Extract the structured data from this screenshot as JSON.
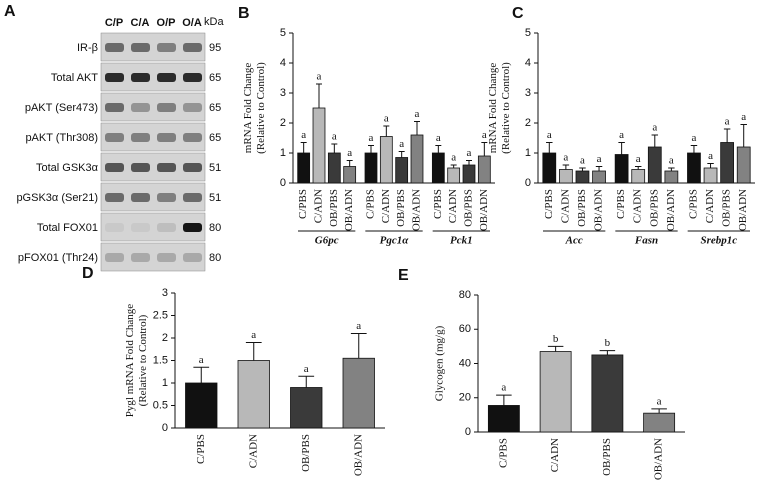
{
  "blot": {
    "panel": "A",
    "lanes": [
      "C/P",
      "C/A",
      "O/P",
      "O/A"
    ],
    "unit": "kDa",
    "rows": [
      {
        "label": "IR-β",
        "kda": 95
      },
      {
        "label": "Total AKT",
        "kda": 65
      },
      {
        "label": "pAKT (Ser473)",
        "kda": 65
      },
      {
        "label": "pAKT (Thr308)",
        "kda": 65
      },
      {
        "label": "Total GSK3α",
        "kda": 51
      },
      {
        "label": "pGSK3α (Ser21)",
        "kda": 51
      },
      {
        "label": "Total FOX01",
        "kda": 80
      },
      {
        "label": "pFOX01 (Thr24)",
        "kda": 80
      }
    ]
  },
  "chart_data": [
    {
      "type": "bar",
      "panel": "B",
      "y_label": [
        "mRNA Fold Change",
        "(Relative to Control)"
      ],
      "categories": [
        "G6pc",
        "Pgc1α",
        "Pck1"
      ],
      "series": [
        {
          "name": "C/PBS",
          "color": "#111111",
          "values": [
            1.0,
            1.0,
            1.0
          ],
          "errors": [
            0.35,
            0.25,
            0.25
          ],
          "letters": [
            "a",
            "a",
            "a"
          ]
        },
        {
          "name": "C/ADN",
          "color": "#b8b8b8",
          "values": [
            2.5,
            1.55,
            0.5
          ],
          "errors": [
            0.8,
            0.35,
            0.1
          ],
          "letters": [
            "a",
            "a",
            "a"
          ]
        },
        {
          "name": "OB/PBS",
          "color": "#3a3a3a",
          "values": [
            1.0,
            0.85,
            0.6
          ],
          "errors": [
            0.3,
            0.2,
            0.15
          ],
          "letters": [
            "a",
            "a",
            "a"
          ]
        },
        {
          "name": "OB/ADN",
          "color": "#828282",
          "values": [
            0.55,
            1.6,
            0.9
          ],
          "errors": [
            0.2,
            0.45,
            0.45
          ],
          "letters": [
            "a",
            "a",
            "a"
          ]
        }
      ],
      "ylim": [
        0,
        5
      ],
      "yticks": [
        0,
        1,
        2,
        3,
        4,
        5
      ]
    },
    {
      "type": "bar",
      "panel": "C",
      "y_label": [
        "mRNA Fold Change",
        "(Relative to Control)"
      ],
      "categories": [
        "Acc",
        "Fasn",
        "Srebp1c"
      ],
      "series": [
        {
          "name": "C/PBS",
          "color": "#111111",
          "values": [
            1.0,
            0.95,
            1.0
          ],
          "errors": [
            0.35,
            0.4,
            0.25
          ],
          "letters": [
            "a",
            "a",
            "a"
          ]
        },
        {
          "name": "C/ADN",
          "color": "#b8b8b8",
          "values": [
            0.45,
            0.45,
            0.5
          ],
          "errors": [
            0.15,
            0.1,
            0.15
          ],
          "letters": [
            "a",
            "a",
            "a"
          ]
        },
        {
          "name": "OB/PBS",
          "color": "#3a3a3a",
          "values": [
            0.4,
            1.2,
            1.35
          ],
          "errors": [
            0.1,
            0.4,
            0.45
          ],
          "letters": [
            "a",
            "a",
            "a"
          ]
        },
        {
          "name": "OB/ADN",
          "color": "#828282",
          "values": [
            0.4,
            0.4,
            1.2
          ],
          "errors": [
            0.15,
            0.1,
            0.75
          ],
          "letters": [
            "a",
            "a",
            "a"
          ]
        }
      ],
      "ylim": [
        0,
        5
      ],
      "yticks": [
        0,
        1,
        2,
        3,
        4,
        5
      ]
    },
    {
      "type": "bar",
      "panel": "D",
      "y_label": [
        "Pygl mRNA Fold Change",
        "(Relative to Control)"
      ],
      "categories": [
        "C/PBS",
        "C/ADN",
        "OB/PBS",
        "OB/ADN"
      ],
      "values": [
        1.0,
        1.5,
        0.9,
        1.55
      ],
      "errors": [
        0.35,
        0.4,
        0.25,
        0.55
      ],
      "letters": [
        "a",
        "a",
        "a",
        "a"
      ],
      "colors": [
        "#111111",
        "#b8b8b8",
        "#3a3a3a",
        "#828282"
      ],
      "ylim": [
        0,
        3
      ],
      "yticks": [
        0,
        0.5,
        1,
        1.5,
        2,
        2.5,
        3
      ]
    },
    {
      "type": "bar",
      "panel": "E",
      "y_label": [
        "Glycogen (mg/g)"
      ],
      "categories": [
        "C/PBS",
        "C/ADN",
        "OB/PBS",
        "OB/ADN"
      ],
      "values": [
        15.5,
        47,
        45,
        11
      ],
      "errors": [
        6,
        3,
        2.5,
        2.5
      ],
      "letters": [
        "a",
        "b",
        "b",
        "a"
      ],
      "colors": [
        "#111111",
        "#b8b8b8",
        "#3a3a3a",
        "#828282"
      ],
      "ylim": [
        0,
        80
      ],
      "yticks": [
        0,
        20,
        40,
        60,
        80
      ]
    }
  ]
}
